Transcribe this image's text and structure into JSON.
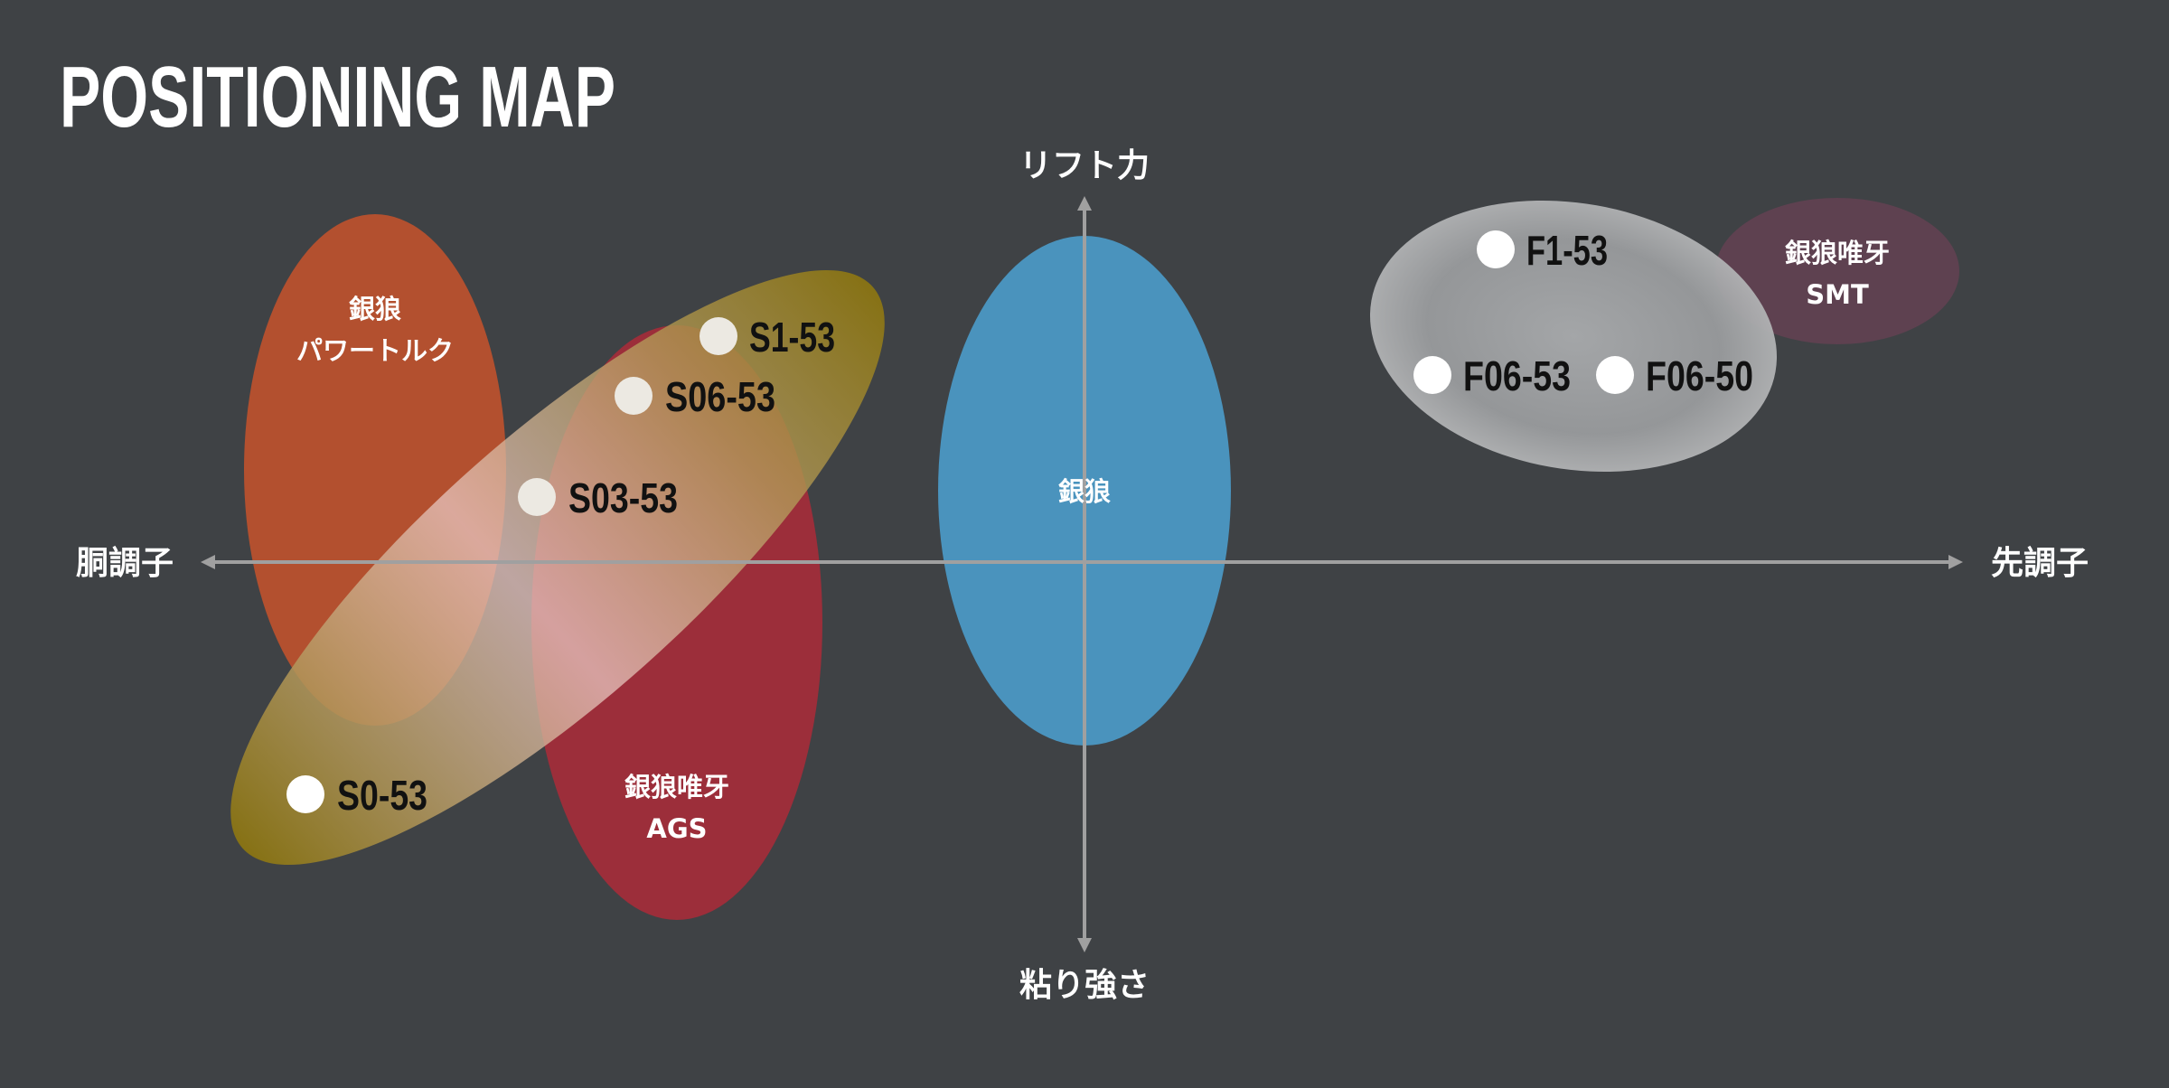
{
  "title": "POSITIONING MAP",
  "chart_data": {
    "type": "scatter",
    "title": "POSITIONING MAP",
    "axes": {
      "top": "リフト力",
      "bottom": "粘り強さ",
      "left": "胴調子",
      "right": "先調子"
    },
    "grid": false,
    "groups": [
      {
        "line1": "銀狼",
        "line2": "パワートルク",
        "color": "#b3502f"
      },
      {
        "line1": "銀狼唯牙",
        "line2": "AGS",
        "color": "#9c2e3a"
      },
      {
        "line1": "銀狼",
        "line2": "",
        "color": "#4a93bd"
      },
      {
        "line1": "銀狼唯牙",
        "line2": "SMT",
        "color": "#5e4150"
      },
      {
        "line1": "",
        "line2": "",
        "color": "#8a7a1a"
      },
      {
        "line1": "",
        "line2": "",
        "color": "#a0a2a4"
      }
    ],
    "points": [
      {
        "label": "S1-53"
      },
      {
        "label": "S06-53"
      },
      {
        "label": "S03-53"
      },
      {
        "label": "S0-53"
      },
      {
        "label": "F1-53"
      },
      {
        "label": "F06-53"
      },
      {
        "label": "F06-50"
      }
    ]
  }
}
